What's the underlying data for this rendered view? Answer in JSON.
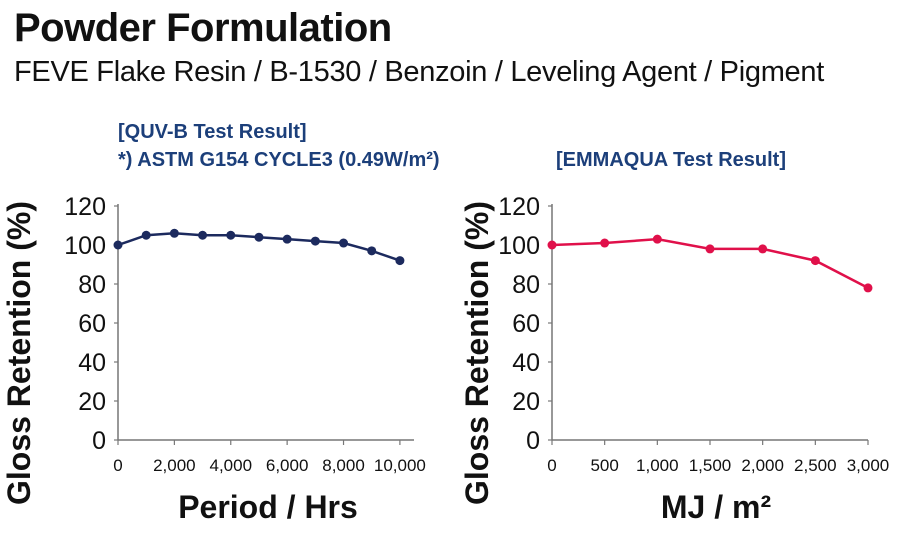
{
  "header": {
    "title": "Powder Formulation",
    "subtitle": "FEVE Flake Resin / B-1530 / Benzoin / Leveling Agent / Pigment"
  },
  "colors": {
    "left_series": "#1c2a5e",
    "right_series": "#e0104a",
    "label": "#1c3f7a"
  },
  "chart_data": [
    {
      "type": "line",
      "title_line1": "[QUV-B Test Result]",
      "title_line2": "*) ASTM G154 CYCLE3 (0.49W/m²)",
      "xlabel": "Period / Hrs",
      "ylabel": "Gloss Retention (%)",
      "xlim": [
        0,
        10500
      ],
      "ylim": [
        0,
        120
      ],
      "x_ticks": [
        0,
        2000,
        4000,
        6000,
        8000,
        10000
      ],
      "x_tick_labels": [
        "0",
        "2,000",
        "4,000",
        "6,000",
        "8,000",
        "10,000"
      ],
      "y_ticks": [
        0,
        20,
        40,
        60,
        80,
        100,
        120
      ],
      "y_tick_labels": [
        "0",
        "20",
        "40",
        "60",
        "80",
        "100",
        "120"
      ],
      "grid": false,
      "series": [
        {
          "x": [
            0,
            1000,
            2000,
            3000,
            4000,
            5000,
            6000,
            7000,
            8000,
            9000,
            10000
          ],
          "y": [
            100,
            105,
            106,
            105,
            105,
            104,
            103,
            102,
            101,
            97,
            92
          ]
        }
      ]
    },
    {
      "type": "line",
      "title_line1": "[EMMAQUA Test Result]",
      "xlabel": "MJ / m²",
      "ylabel": "Gloss Retention (%)",
      "xlim": [
        0,
        3000
      ],
      "ylim": [
        0,
        120
      ],
      "x_ticks": [
        0,
        500,
        1000,
        1500,
        2000,
        2500,
        3000
      ],
      "x_tick_labels": [
        "0",
        "500",
        "1,000",
        "1,500",
        "2,000",
        "2,500",
        "3,000"
      ],
      "y_ticks": [
        0,
        20,
        40,
        60,
        80,
        100,
        120
      ],
      "y_tick_labels": [
        "0",
        "20",
        "40",
        "60",
        "80",
        "100",
        "120"
      ],
      "grid": false,
      "series": [
        {
          "x": [
            0,
            500,
            1000,
            1500,
            2000,
            2500,
            3000
          ],
          "y": [
            100,
            101,
            103,
            98,
            98,
            92,
            78
          ]
        }
      ]
    }
  ]
}
